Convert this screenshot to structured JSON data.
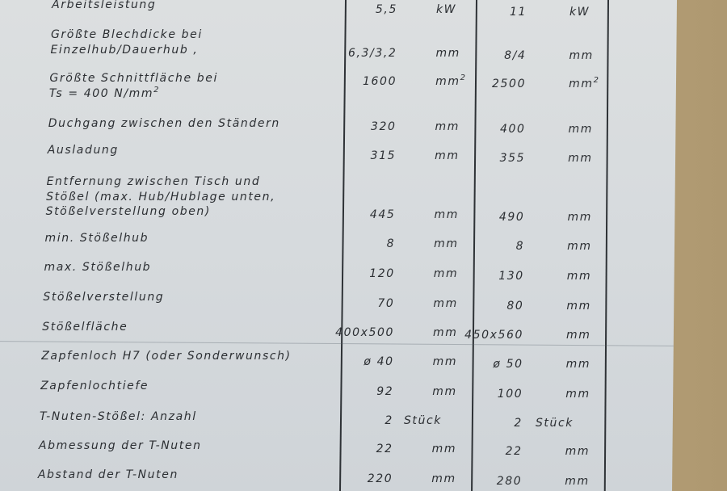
{
  "rows": [
    {
      "label": [
        "Arbeitsleistung"
      ],
      "m1": {
        "value": "5,5",
        "unit": "kW"
      },
      "m2": {
        "value": "11",
        "unit": "kW"
      }
    },
    {
      "label": [
        "Größte Blechdicke bei",
        "Einzelhub/Dauerhub ,"
      ],
      "m1": {
        "value": "6,3/3,2",
        "unit": "mm"
      },
      "m2": {
        "value": "8/4",
        "unit": "mm"
      }
    },
    {
      "label": [
        "Größte Schnittfläche bei",
        "Ts = 400 N/mm²"
      ],
      "m1": {
        "value": "1600",
        "unit": "mm²"
      },
      "m2": {
        "value": "2500",
        "unit": "mm²"
      }
    },
    {
      "label": [
        "Duchgang zwischen den Ständern"
      ],
      "m1": {
        "value": "320",
        "unit": "mm"
      },
      "m2": {
        "value": "400",
        "unit": "mm"
      }
    },
    {
      "label": [
        "Ausladung"
      ],
      "m1": {
        "value": "315",
        "unit": "mm"
      },
      "m2": {
        "value": "355",
        "unit": "mm"
      }
    },
    {
      "label": [
        "Entfernung zwischen Tisch und",
        "Stößel (max. Hub/Hublage unten,",
        "Stößelverstellung oben)"
      ],
      "m1": {
        "value": "445",
        "unit": "mm"
      },
      "m2": {
        "value": "490",
        "unit": "mm"
      }
    },
    {
      "label": [
        "min. Stößelhub"
      ],
      "m1": {
        "value": "8",
        "unit": "mm"
      },
      "m2": {
        "value": "8",
        "unit": "mm"
      }
    },
    {
      "label": [
        "max. Stößelhub"
      ],
      "m1": {
        "value": "120",
        "unit": "mm"
      },
      "m2": {
        "value": "130",
        "unit": "mm"
      }
    },
    {
      "label": [
        "Stößelverstellung"
      ],
      "m1": {
        "value": "70",
        "unit": "mm"
      },
      "m2": {
        "value": "80",
        "unit": "mm"
      }
    },
    {
      "label": [
        "Stößelfläche"
      ],
      "m1": {
        "value": "400x500",
        "unit": "mm"
      },
      "m2": {
        "value": "450x560",
        "unit": "mm"
      }
    },
    {
      "label": [
        "Zapfenloch   H7 (oder Sonderwunsch)"
      ],
      "m1": {
        "value": "ø 40",
        "unit": "mm"
      },
      "m2": {
        "value": "ø 50",
        "unit": "mm"
      }
    },
    {
      "label": [
        "Zapfenlochtiefe"
      ],
      "m1": {
        "value": "92",
        "unit": "mm"
      },
      "m2": {
        "value": "100",
        "unit": "mm"
      }
    },
    {
      "label": [
        "T-Nuten-Stößel:  Anzahl"
      ],
      "m1": {
        "value": "2",
        "unit": "Stück"
      },
      "m2": {
        "value": "2",
        "unit": "Stück"
      }
    },
    {
      "label": [
        "Abmessung der T-Nuten"
      ],
      "m1": {
        "value": "22",
        "unit": "mm"
      },
      "m2": {
        "value": "22",
        "unit": "mm"
      }
    },
    {
      "label": [
        "Abstand der T-Nuten"
      ],
      "m1": {
        "value": "220",
        "unit": "mm"
      },
      "m2": {
        "value": "280",
        "unit": "mm"
      }
    }
  ]
}
